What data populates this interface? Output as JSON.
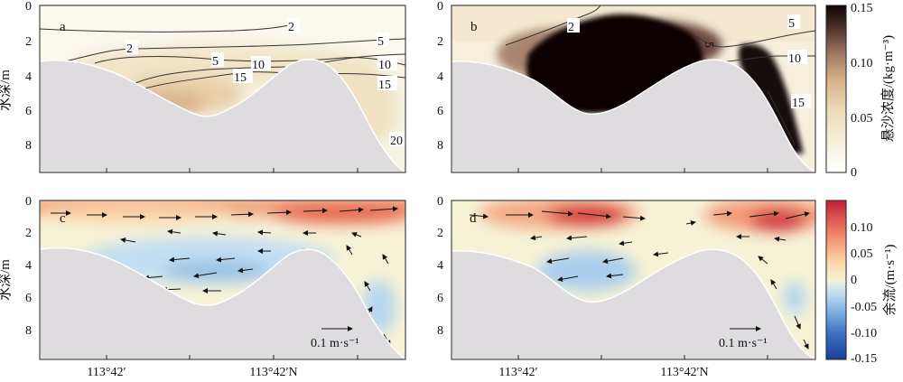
{
  "figure": {
    "y_axis_label": "水深/m",
    "x_tick_labels": [
      "113°42′",
      "113°42′N"
    ],
    "y_tick_labels": [
      "0",
      "2",
      "4",
      "6",
      "8"
    ],
    "panel_labels": [
      "a",
      "b",
      "c",
      "d"
    ],
    "scale_arrow_label": "0.1 m·s⁻¹"
  },
  "colorbars": {
    "ssc": {
      "label": "悬沙浓度/(kg·m⁻³)",
      "ticks": [
        "0",
        "0.05",
        "0.10",
        "0.15"
      ],
      "range": [
        0,
        0.15
      ],
      "colors": [
        "#ffffff",
        "#f5efd8",
        "#ecd9b4",
        "#d8b58c",
        "#9b7461",
        "#4a2f28",
        "#0e0606"
      ]
    },
    "residual": {
      "label": "余流/(m·s⁻¹)",
      "ticks": [
        "0.10",
        "0.05",
        "0",
        "-0.05",
        "-0.10",
        "-0.15"
      ],
      "range": [
        -0.15,
        0.15
      ],
      "colors": [
        "#1b3f9c",
        "#3c6ec0",
        "#7fb0e0",
        "#c3def2",
        "#f6f2d6",
        "#fbd2a4",
        "#f08a6a",
        "#c21f37"
      ]
    }
  },
  "chart_data": [
    {
      "type": "heatmap",
      "panel": "a",
      "quantity": "suspended sediment concentration (kg·m⁻³)",
      "ylim": [
        0,
        9.8
      ],
      "color_range": [
        0,
        0.15
      ],
      "contour_labels": [
        "2",
        "2",
        "5",
        "5",
        "10",
        "10",
        "15",
        "15",
        "20"
      ],
      "notes": "Low concentration (<0.05) through most of section, slightly higher (~0.05-0.08) near the bed in the channel trough."
    },
    {
      "type": "heatmap",
      "panel": "b",
      "quantity": "suspended sediment concentration (kg·m⁻³)",
      "ylim": [
        0,
        9.8
      ],
      "color_range": [
        0,
        0.15
      ],
      "contour_labels": [
        "2",
        "5",
        "5",
        "10",
        "15"
      ],
      "notes": "High concentration (>=0.15) filling the left trough from ~2 m to bed and the right slope; lighter near surface."
    },
    {
      "type": "heatmap",
      "panel": "c",
      "quantity": "residual current (m·s⁻¹)",
      "ylim": [
        0,
        9.8
      ],
      "color_range": [
        -0.15,
        0.15
      ],
      "notes": "Positive (seaward) residual ~0.05-0.12 in a surface layer 0-1.5 m; negative (-0.02 to -0.05) below; vectors eastward at surface, westward at depth."
    },
    {
      "type": "heatmap",
      "panel": "d",
      "quantity": "residual current (m·s⁻¹)",
      "ylim": [
        0,
        9.8
      ],
      "color_range": [
        -0.15,
        0.15
      ],
      "notes": "Two positive cores (~0.10-0.12) near 1 m depth on the left and right; negative (~-0.05) patch at 3.5-5 m in the trough."
    }
  ]
}
